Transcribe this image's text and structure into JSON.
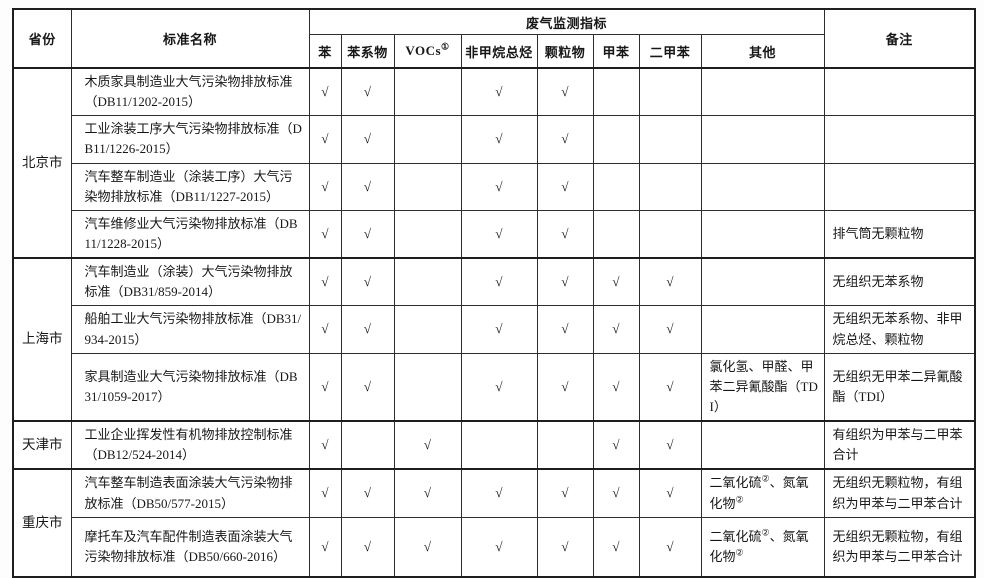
{
  "table": {
    "header": {
      "province": "省份",
      "standard_name": "标准名称",
      "group_title": "废气监测指标",
      "remarks": "备注",
      "indicators": [
        {
          "label": "苯",
          "sup": ""
        },
        {
          "label": "苯系物",
          "sup": ""
        },
        {
          "label": "VOCs",
          "sup": "①"
        },
        {
          "label": "非甲烷总烃",
          "sup": ""
        },
        {
          "label": "颗粒物",
          "sup": ""
        },
        {
          "label": "甲苯",
          "sup": ""
        },
        {
          "label": "二甲苯",
          "sup": ""
        },
        {
          "label": "其他",
          "sup": ""
        }
      ]
    },
    "check_mark": "√",
    "groups": [
      {
        "province": "北京市",
        "rows": [
          {
            "name": "木质家具制造业大气污染物排放标准（DB11/1202-2015）",
            "checks": [
              true,
              true,
              false,
              true,
              true,
              false,
              false
            ],
            "other": "",
            "remark": ""
          },
          {
            "name": "工业涂装工序大气污染物排放标准（DB11/1226-2015）",
            "checks": [
              true,
              true,
              false,
              true,
              true,
              false,
              false
            ],
            "other": "",
            "remark": ""
          },
          {
            "name": "汽车整车制造业（涂装工序）大气污染物排放标准（DB11/1227-2015）",
            "checks": [
              true,
              true,
              false,
              true,
              true,
              false,
              false
            ],
            "other": "",
            "remark": ""
          },
          {
            "name": "汽车维修业大气污染物排放标准（DB11/1228-2015）",
            "checks": [
              true,
              true,
              false,
              true,
              true,
              false,
              false
            ],
            "other": "",
            "remark": "排气筒无颗粒物"
          }
        ]
      },
      {
        "province": "上海市",
        "rows": [
          {
            "name": "汽车制造业（涂装）大气污染物排放标准（DB31/859-2014）",
            "checks": [
              true,
              true,
              false,
              true,
              true,
              true,
              true
            ],
            "other": "",
            "remark": "无组织无苯系物"
          },
          {
            "name": "船舶工业大气污染物排放标准（DB31/934-2015）",
            "checks": [
              true,
              true,
              false,
              true,
              true,
              true,
              true
            ],
            "other": "",
            "remark": "无组织无苯系物、非甲烷总烃、颗粒物"
          },
          {
            "name": "家具制造业大气污染物排放标准（DB31/1059-2017）",
            "checks": [
              true,
              true,
              false,
              true,
              true,
              true,
              true
            ],
            "other": "氯化氢、甲醛、甲苯二异氰酸酯（TDI）",
            "remark": "无组织无甲苯二异氰酸酯（TDI）"
          }
        ]
      },
      {
        "province": "天津市",
        "rows": [
          {
            "name": "工业企业挥发性有机物排放控制标准（DB12/524-2014）",
            "checks": [
              true,
              false,
              true,
              false,
              false,
              true,
              true
            ],
            "other": "",
            "remark": "有组织为甲苯与二甲苯合计"
          }
        ]
      },
      {
        "province": "重庆市",
        "rows": [
          {
            "name": "汽车整车制造表面涂装大气污染物排放标准（DB50/577-2015）",
            "checks": [
              true,
              true,
              true,
              true,
              true,
              true,
              true
            ],
            "other": "二氧化硫②、氮氧化物②",
            "remark": "无组织无颗粒物，有组织为甲苯与二甲苯合计"
          },
          {
            "name": "摩托车及汽车配件制造表面涂装大气污染物排放标准（DB50/660-2016）",
            "checks": [
              true,
              true,
              true,
              true,
              true,
              true,
              true
            ],
            "other": "二氧化硫②、氮氧化物②",
            "remark": "无组织无颗粒物，有组织为甲苯与二甲苯合计"
          }
        ]
      }
    ]
  }
}
